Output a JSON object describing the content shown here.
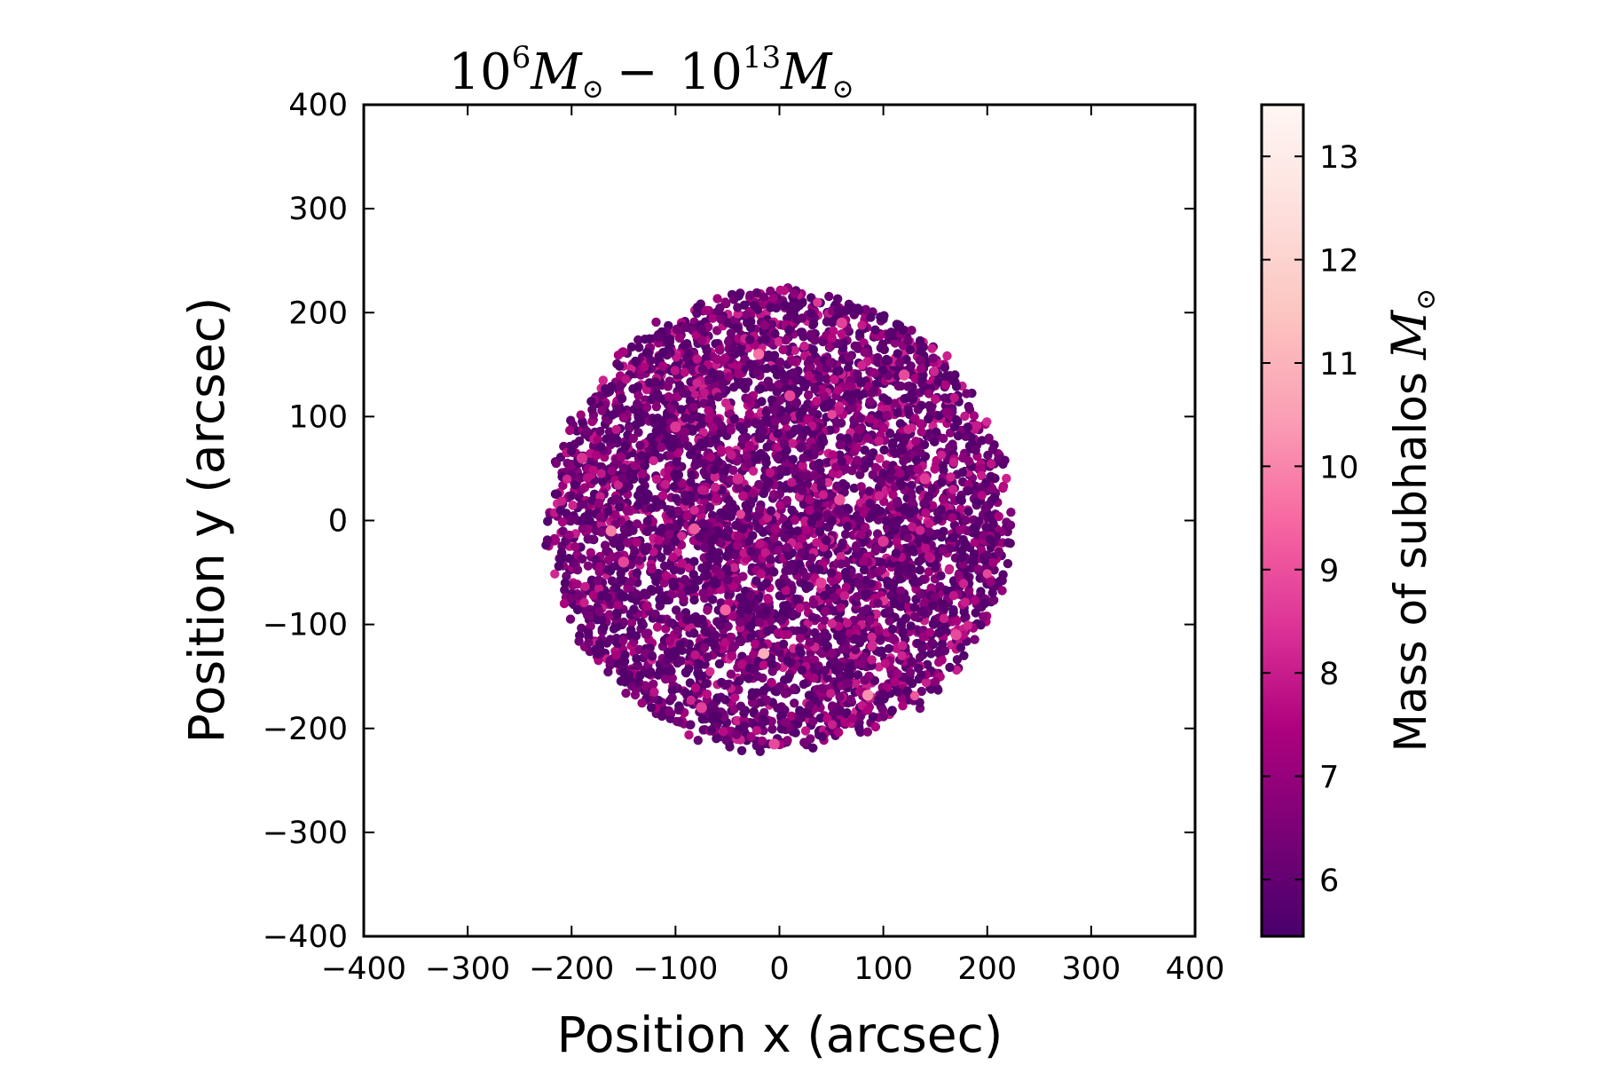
{
  "chart_data": {
    "type": "scatter",
    "title": {
      "low_base": "10",
      "low_exp": "6",
      "separator": "−",
      "high_base": "10",
      "high_exp": "13",
      "mass_symbol": "M",
      "sun_symbol": "⊙"
    },
    "xlabel": "Position x (arcsec)",
    "ylabel": "Position y (arcsec)",
    "xlim": [
      -400,
      400
    ],
    "ylim": [
      -400,
      400
    ],
    "x_ticks": [
      -400,
      -300,
      -200,
      -100,
      0,
      100,
      200,
      300,
      400
    ],
    "y_ticks": [
      -400,
      -300,
      -200,
      -100,
      0,
      100,
      200,
      300,
      400
    ],
    "x_tick_labels": [
      "−400",
      "−300",
      "−200",
      "−100",
      "0",
      "100",
      "200",
      "300",
      "400"
    ],
    "y_tick_labels": [
      "−400",
      "−300",
      "−200",
      "−100",
      "0",
      "100",
      "200",
      "300",
      "400"
    ],
    "grid": false,
    "legend": "none",
    "distribution": {
      "shape": "disk",
      "center": [
        0,
        0
      ],
      "radius_arcsec": 220,
      "point_count": 5000,
      "dominant_mass_log10": 6.5,
      "note_visible": false
    },
    "highlighted_points": [
      {
        "x": -20,
        "y": 160,
        "m": 9.6
      },
      {
        "x": -162,
        "y": -10,
        "m": 9.8
      },
      {
        "x": -82,
        "y": -8,
        "m": 9.2
      },
      {
        "x": -52,
        "y": -86,
        "m": 9.4
      },
      {
        "x": -15,
        "y": -128,
        "m": 10.9
      },
      {
        "x": 85,
        "y": -168,
        "m": 10.2
      },
      {
        "x": 58,
        "y": 20,
        "m": 9.0
      },
      {
        "x": 120,
        "y": 140,
        "m": 8.9
      },
      {
        "x": -150,
        "y": -40,
        "m": 8.8
      },
      {
        "x": -75,
        "y": -180,
        "m": 8.7
      },
      {
        "x": 40,
        "y": -60,
        "m": 8.6
      },
      {
        "x": 170,
        "y": -110,
        "m": 8.9
      },
      {
        "x": -100,
        "y": 90,
        "m": 8.5
      },
      {
        "x": 10,
        "y": 120,
        "m": 8.8
      },
      {
        "x": 140,
        "y": 40,
        "m": 8.6
      },
      {
        "x": -190,
        "y": 60,
        "m": 8.4
      },
      {
        "x": 60,
        "y": 190,
        "m": 8.7
      },
      {
        "x": -40,
        "y": 40,
        "m": 8.3
      },
      {
        "x": 100,
        "y": -20,
        "m": 8.5
      },
      {
        "x": -5,
        "y": -215,
        "m": 8.9
      }
    ],
    "colorbar": {
      "label": "Mass of subhalos",
      "label_symbol": "M",
      "label_sun": "⊙",
      "min": 5.45,
      "max": 13.5,
      "ticks": [
        6,
        7,
        8,
        9,
        10,
        11,
        12,
        13
      ],
      "tick_labels": [
        "6",
        "7",
        "8",
        "9",
        "10",
        "11",
        "12",
        "13"
      ],
      "colormap": "RdPu_r",
      "colormap_stops": [
        "#49006a",
        "#7a0177",
        "#ae017e",
        "#dd3497",
        "#f768a1",
        "#fa9fb5",
        "#fcc5c0",
        "#fde0dd",
        "#fff7f3"
      ]
    }
  }
}
